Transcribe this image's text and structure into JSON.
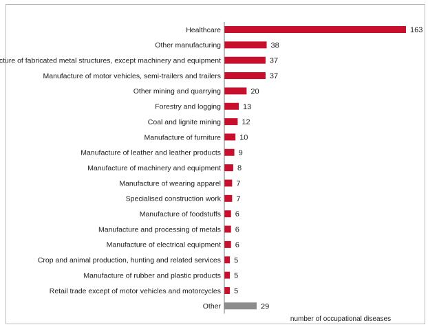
{
  "chart_data": {
    "type": "bar",
    "orientation": "horizontal",
    "categories": [
      "Healthcare",
      "Other manufacturing",
      "Manufacture of fabricated metal structures, except machinery and equipment",
      "Manufacture of motor vehicles, semi-trailers and trailers",
      "Other mining and quarrying",
      "Forestry and logging",
      "Coal and lignite mining",
      "Manufacture of furniture",
      "Manufacture of leather and leather products",
      "Manufacture of machinery and equipment",
      "Manufacture of wearing apparel",
      "Specialised construction work",
      "Manufacture of foodstuffs",
      "Manufacture and processing of metals",
      "Manufacture of electrical equipment",
      "Crop and animal production, hunting and related services",
      "Manufacture of rubber and plastic products",
      "Retail trade except of motor vehicles and motorcycles",
      "Other"
    ],
    "values": [
      163,
      38,
      37,
      37,
      20,
      13,
      12,
      10,
      9,
      8,
      7,
      7,
      6,
      6,
      6,
      5,
      5,
      5,
      29
    ],
    "bar_colors": [
      "#c8102e",
      "#c8102e",
      "#c8102e",
      "#c8102e",
      "#c8102e",
      "#c8102e",
      "#c8102e",
      "#c8102e",
      "#c8102e",
      "#c8102e",
      "#c8102e",
      "#c8102e",
      "#c8102e",
      "#c8102e",
      "#c8102e",
      "#c8102e",
      "#c8102e",
      "#c8102e",
      "#8c8c8c"
    ],
    "xlabel": "number of occupational diseases",
    "ylabel": "",
    "title": "",
    "xlim": [
      0,
      163
    ],
    "grid": false
  }
}
